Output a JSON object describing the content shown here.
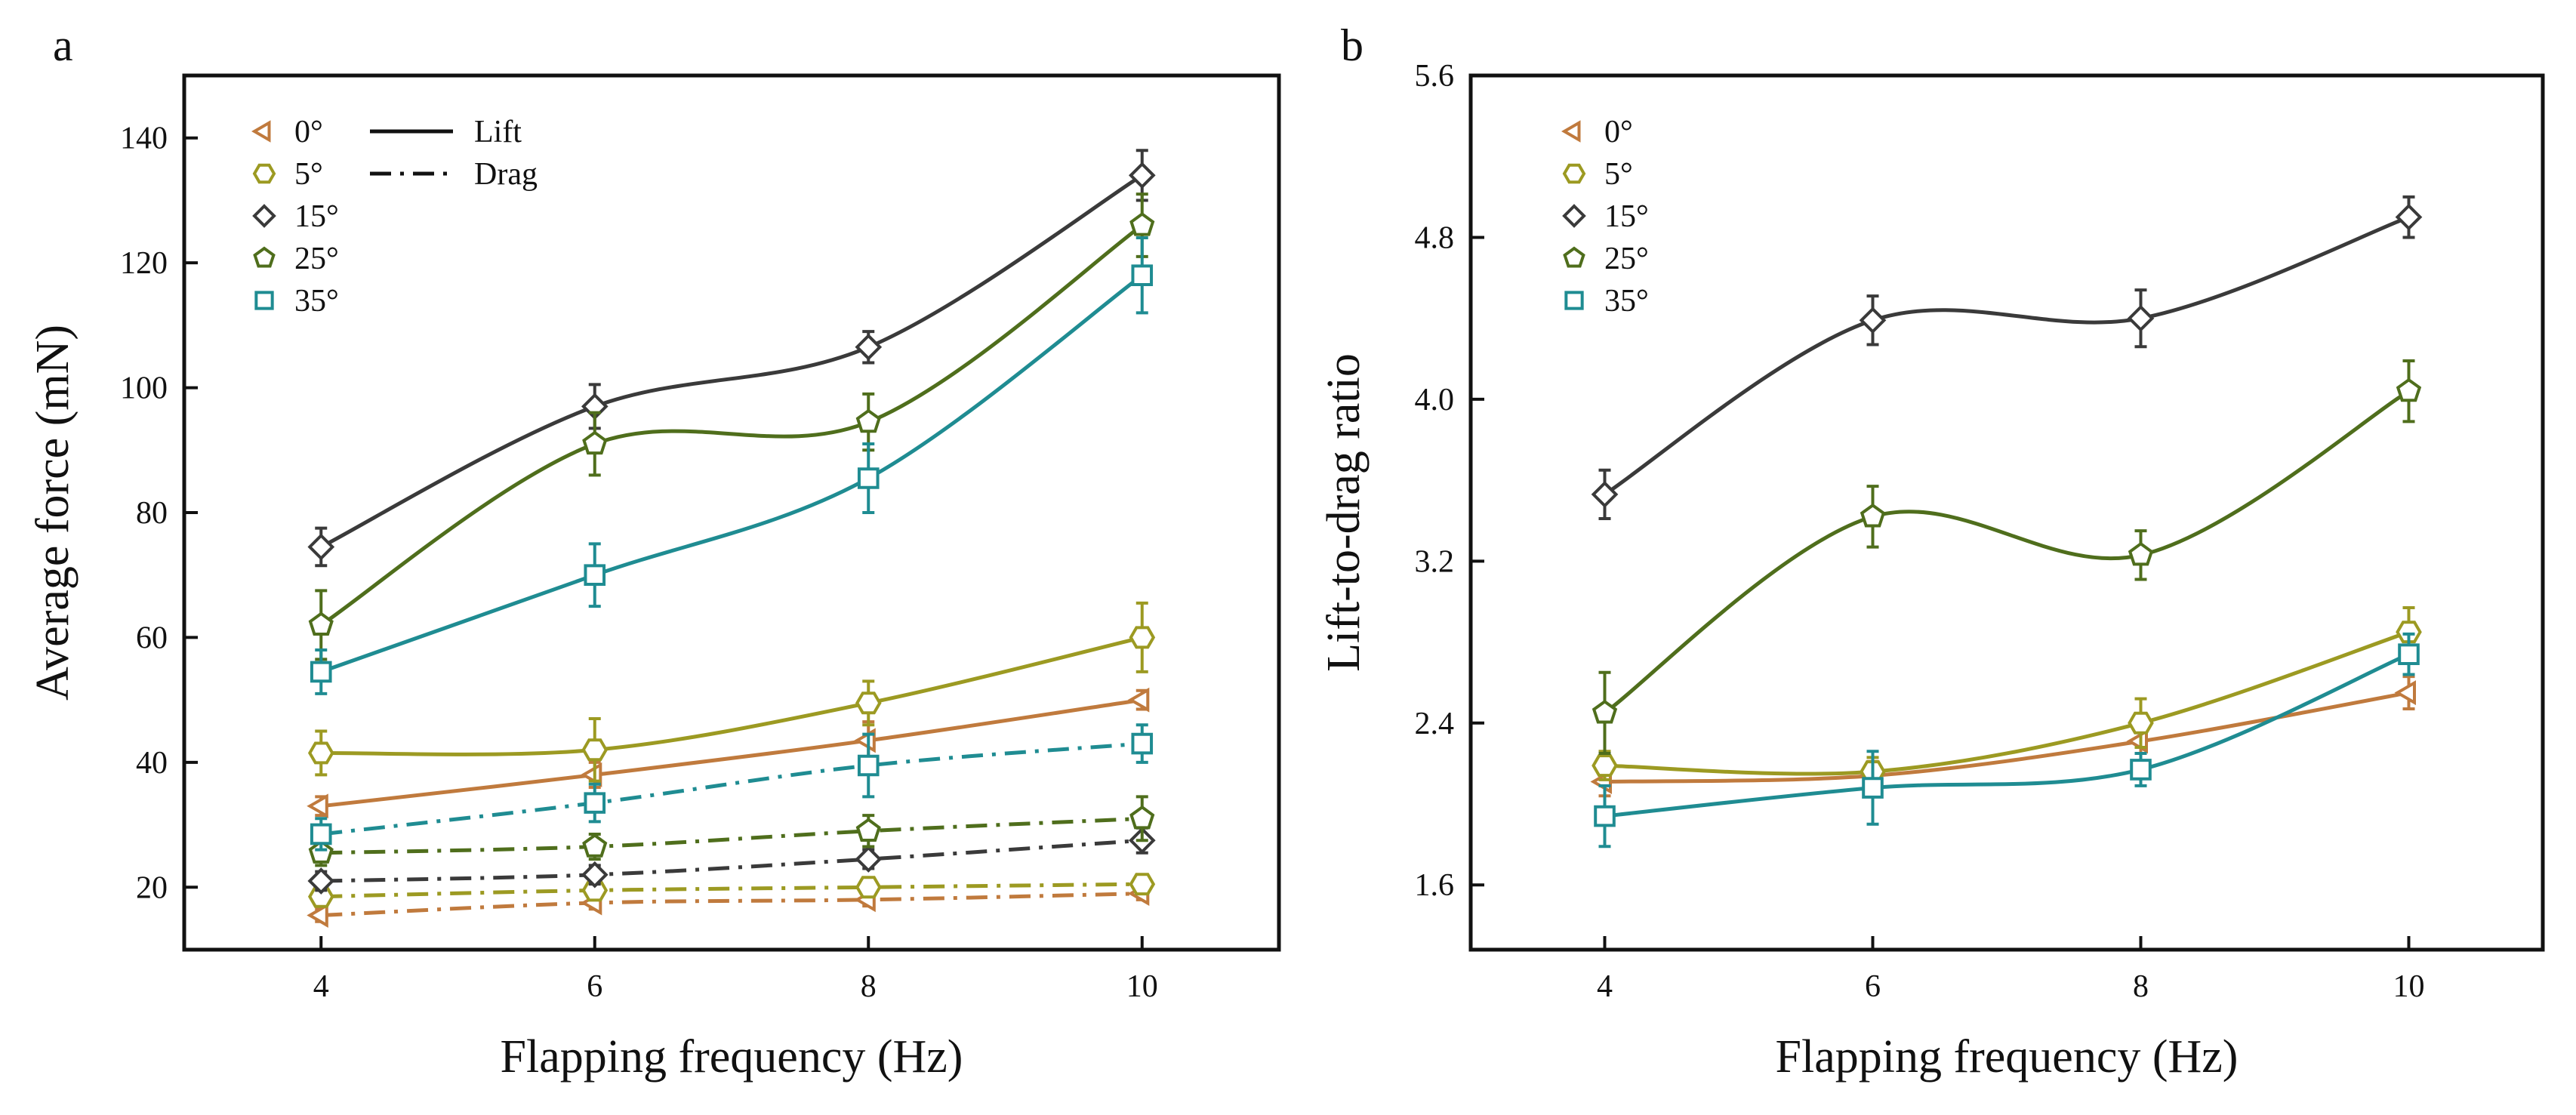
{
  "chart_data": [
    {
      "panel": "a",
      "type": "line",
      "title": "",
      "xlabel": "Flapping frequency (Hz)",
      "ylabel": "Average force (mN)",
      "xlim": [
        3,
        11
      ],
      "ylim": [
        10,
        150
      ],
      "xticks": [
        4,
        6,
        8,
        10
      ],
      "yticks": [
        20,
        40,
        60,
        80,
        100,
        120,
        140
      ],
      "grid": false,
      "legend_position": "top-left",
      "legend_entries": [
        "0°",
        "5°",
        "15°",
        "25°",
        "35°"
      ],
      "style_legend": [
        {
          "label": "Lift",
          "dash": "solid"
        },
        {
          "label": "Drag",
          "dash": "dash-dot"
        }
      ],
      "x": [
        4,
        6,
        8,
        10
      ],
      "series": [
        {
          "name": "0°",
          "kind": "Lift",
          "color": "#c07a3d",
          "marker": "triangle-left",
          "values": [
            33,
            38,
            43.5,
            50
          ],
          "errors": [
            1.5,
            2,
            3,
            1.5
          ]
        },
        {
          "name": "5°",
          "kind": "Lift",
          "color": "#9c9a22",
          "marker": "hexagon",
          "values": [
            41.5,
            42,
            49.5,
            60
          ],
          "errors": [
            3.5,
            5,
            3.5,
            5.5
          ]
        },
        {
          "name": "15°",
          "kind": "Lift",
          "color": "#3a3a3a",
          "marker": "diamond",
          "values": [
            74.5,
            97,
            106.5,
            134
          ],
          "errors": [
            3,
            3.5,
            2.5,
            4
          ]
        },
        {
          "name": "25°",
          "kind": "Lift",
          "color": "#4f6e1c",
          "marker": "pentagon",
          "values": [
            62,
            91,
            94.5,
            126
          ],
          "errors": [
            5.5,
            5,
            4.5,
            5
          ]
        },
        {
          "name": "35°",
          "kind": "Lift",
          "color": "#1f8c92",
          "marker": "square",
          "values": [
            54.5,
            70,
            85.5,
            118
          ],
          "errors": [
            3.5,
            5,
            5.5,
            6
          ]
        },
        {
          "name": "0°",
          "kind": "Drag",
          "color": "#c07a3d",
          "marker": "triangle-left",
          "values": [
            15.5,
            17.5,
            18,
            19
          ],
          "errors": [
            1,
            1,
            1,
            1
          ]
        },
        {
          "name": "5°",
          "kind": "Drag",
          "color": "#9c9a22",
          "marker": "hexagon",
          "values": [
            18.5,
            19.5,
            20,
            20.5
          ],
          "errors": [
            1,
            1,
            1,
            1.5
          ]
        },
        {
          "name": "15°",
          "kind": "Drag",
          "color": "#3a3a3a",
          "marker": "diamond",
          "values": [
            21,
            22,
            24.5,
            27.5
          ],
          "errors": [
            1.5,
            1.5,
            1.5,
            2
          ]
        },
        {
          "name": "25°",
          "kind": "Drag",
          "color": "#4f6e1c",
          "marker": "pentagon",
          "values": [
            25.5,
            26.5,
            29,
            31
          ],
          "errors": [
            2,
            2,
            2.5,
            3.5
          ]
        },
        {
          "name": "35°",
          "kind": "Drag",
          "color": "#1f8c92",
          "marker": "square",
          "values": [
            28.5,
            33.5,
            39.5,
            43
          ],
          "errors": [
            2.5,
            3,
            5,
            3
          ]
        }
      ]
    },
    {
      "panel": "b",
      "type": "line",
      "title": "",
      "xlabel": "Flapping frequency (Hz)",
      "ylabel": "Lift-to-drag ratio",
      "xlim": [
        3,
        11
      ],
      "ylim": [
        1.28,
        5.6
      ],
      "xticks": [
        4,
        6,
        8,
        10
      ],
      "yticks": [
        1.6,
        2.4,
        3.2,
        4.0,
        4.8,
        5.6
      ],
      "ytick_labels": [
        "1.6",
        "2.4",
        "3.2",
        "4.0",
        "4.8",
        "5.6"
      ],
      "grid": false,
      "legend_position": "top-left",
      "legend_entries": [
        "0°",
        "5°",
        "15°",
        "25°",
        "35°"
      ],
      "x": [
        4,
        6,
        8,
        10
      ],
      "series": [
        {
          "name": "0°",
          "color": "#c07a3d",
          "marker": "triangle-left",
          "values": [
            2.11,
            2.14,
            2.31,
            2.55
          ],
          "errors": [
            0.07,
            0.07,
            0.1,
            0.08
          ]
        },
        {
          "name": "5°",
          "color": "#9c9a22",
          "marker": "hexagon",
          "values": [
            2.19,
            2.16,
            2.4,
            2.85
          ],
          "errors": [
            0.07,
            0.07,
            0.12,
            0.12
          ]
        },
        {
          "name": "15°",
          "color": "#3a3a3a",
          "marker": "diamond",
          "values": [
            3.53,
            4.39,
            4.4,
            4.9
          ],
          "errors": [
            0.12,
            0.12,
            0.14,
            0.1
          ]
        },
        {
          "name": "25°",
          "color": "#4f6e1c",
          "marker": "pentagon",
          "values": [
            2.45,
            3.42,
            3.23,
            4.04
          ],
          "errors": [
            0.2,
            0.15,
            0.12,
            0.15
          ]
        },
        {
          "name": "35°",
          "color": "#1f8c92",
          "marker": "square",
          "values": [
            1.94,
            2.08,
            2.17,
            2.74
          ],
          "errors": [
            0.15,
            0.18,
            0.08,
            0.1
          ]
        }
      ]
    }
  ],
  "panels": {
    "a": {
      "letter": "a"
    },
    "b": {
      "letter": "b"
    }
  },
  "legend_a": {
    "entries": [
      "0°",
      "5°",
      "15°",
      "25°",
      "35°"
    ],
    "lift_label": "Lift",
    "drag_label": "Drag"
  },
  "legend_b": {
    "entries": [
      "0°",
      "5°",
      "15°",
      "25°",
      "35°"
    ]
  }
}
